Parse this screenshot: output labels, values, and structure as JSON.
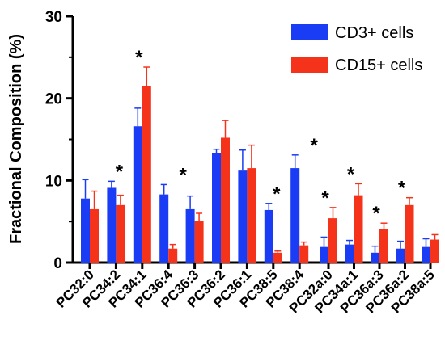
{
  "chart_data": {
    "type": "bar",
    "ylabel": "Fractional Composition (%)",
    "xlabel": "",
    "ylim": [
      0,
      30
    ],
    "yticks": [
      "0",
      "10",
      "20",
      "30"
    ],
    "legend_position": "top-right",
    "categories": [
      "PC32:0",
      "PC34:2",
      "PC34:1",
      "PC36:4",
      "PC36:3",
      "PC36:2",
      "PC36:1",
      "PC38:5",
      "PC38:4",
      "PC32a:0",
      "PC34a:1",
      "PC36a:3",
      "PC36a:2",
      "PC38a:5"
    ],
    "series": [
      {
        "name": "CD3+ cells",
        "color": "#1a3cf5",
        "values": [
          7.8,
          9.1,
          16.6,
          8.3,
          6.5,
          13.3,
          11.2,
          6.4,
          11.5,
          1.9,
          2.2,
          1.2,
          1.7,
          1.9
        ],
        "errors": [
          2.3,
          0.8,
          2.2,
          1.2,
          1.6,
          0.5,
          2.5,
          0.8,
          1.6,
          1.2,
          0.5,
          0.8,
          0.9,
          1.0
        ]
      },
      {
        "name": "CD15+ cells",
        "color": "#f5331a",
        "values": [
          6.5,
          7.0,
          21.5,
          1.7,
          5.1,
          15.2,
          11.5,
          1.2,
          2.1,
          5.4,
          8.2,
          4.1,
          7.0,
          2.8
        ],
        "errors": [
          2.2,
          1.2,
          2.3,
          0.5,
          0.9,
          2.1,
          2.8,
          0.2,
          0.4,
          1.3,
          1.4,
          0.7,
          0.9,
          0.6
        ]
      }
    ],
    "significance": [
      {
        "category": "PC34:2",
        "label": "*"
      },
      {
        "category": "PC34:1",
        "label": "*"
      },
      {
        "category": "PC36:4",
        "label": "*"
      },
      {
        "category": "PC38:5",
        "label": "*"
      },
      {
        "category": "PC38:4",
        "label": "*"
      },
      {
        "category": "PC32a:0",
        "label": "*"
      },
      {
        "category": "PC34a:1",
        "label": "*"
      },
      {
        "category": "PC36a:3",
        "label": "*"
      },
      {
        "category": "PC36a:2",
        "label": "*"
      }
    ]
  }
}
